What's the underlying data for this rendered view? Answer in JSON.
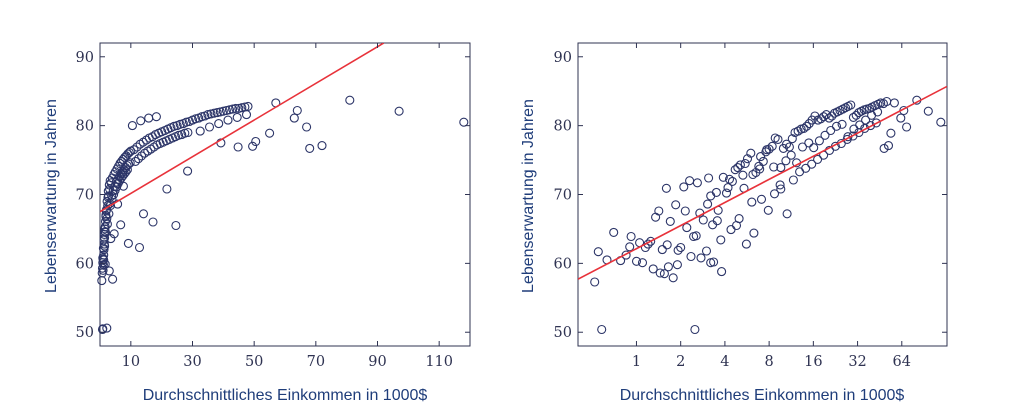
{
  "chart_data": [
    {
      "type": "scatter",
      "xscale": "linear",
      "xlabel": "Durchschnittliches Einkommen in 1000$",
      "ylabel": "Lebenserwartung in Jahren",
      "xlim": [
        0,
        120
      ],
      "ylim": [
        48,
        92
      ],
      "xticks": [
        10,
        30,
        50,
        70,
        90,
        110
      ],
      "xtick_labels": [
        "10",
        "30",
        "50",
        "70",
        "90",
        "110"
      ],
      "yticks": [
        50,
        60,
        70,
        80,
        90
      ],
      "ytick_labels": [
        "50",
        "60",
        "70",
        "80",
        "90"
      ],
      "grid": false,
      "trendline": {
        "x": [
          0,
          92
        ],
        "y": [
          67.5,
          92
        ]
      },
      "series": [
        {
          "x": [
            0.6,
            0.7,
            0.8,
            0.9,
            1.0,
            1.1,
            1.2,
            1.3,
            1.4,
            1.5,
            1.6,
            1.7,
            1.8,
            1.9,
            2.0,
            0.8,
            1.0,
            1.2,
            1.5,
            1.8,
            2.2,
            2.5,
            2.8,
            1.1,
            1.4,
            1.9,
            2.3,
            2.7,
            3.0,
            3.3,
            0.9,
            1.3,
            1.6,
            2.1,
            2.6,
            3.1,
            3.6,
            4.0,
            4.5,
            5.0,
            5.5,
            6.0,
            6.5,
            7.0,
            7.5,
            8.0,
            8.5,
            9.0,
            9.5,
            10.0,
            3.2,
            3.8,
            4.3,
            4.8,
            5.3,
            5.8,
            6.3,
            6.8,
            7.3,
            7.8,
            8.3,
            8.8,
            9.3,
            9.8,
            2.4,
            2.9,
            3.4,
            3.9,
            4.4,
            4.9,
            5.4,
            5.9,
            6.4,
            6.9,
            7.4,
            7.9,
            8.4,
            8.9,
            11,
            12,
            13,
            14,
            15,
            16,
            17,
            18,
            19,
            20,
            21,
            22,
            23,
            24,
            25,
            26,
            27,
            28,
            29,
            30,
            11.5,
            12.5,
            13.5,
            14.5,
            15.5,
            16.5,
            17.5,
            18.5,
            19.5,
            20.5,
            21.5,
            22.5,
            23.5,
            24.5,
            25.5,
            26.5,
            27.5,
            28.5,
            10.5,
            13.2,
            15.8,
            18.3,
            12.8,
            14.1,
            24.6,
            9.2,
            6.7,
            4.1,
            2.2,
            1.7,
            3.5,
            5.7,
            7.6,
            31,
            32,
            33,
            34,
            35,
            36,
            37,
            38,
            39,
            40,
            41,
            42,
            43,
            44,
            45,
            46,
            47,
            48,
            32.5,
            35.5,
            38.5,
            41.5,
            44.5,
            47.5,
            49.5,
            50.5,
            55,
            57,
            63,
            64,
            67,
            68,
            72,
            81,
            97,
            118,
            28.4,
            21.7,
            17.2,
            0.9,
            3.0,
            4.6,
            39.2,
            44.8
          ],
          "y": [
            57.5,
            58.6,
            59.3,
            60.1,
            60.6,
            59.8,
            61.2,
            62.0,
            62.8,
            63.7,
            64.6,
            65.3,
            66.1,
            67.0,
            67.6,
            50.4,
            59.0,
            60.5,
            62.5,
            64.5,
            66.5,
            68.4,
            69.8,
            62.2,
            64.2,
            66.8,
            69.0,
            70.5,
            71.4,
            72.0,
            60.8,
            63.4,
            65.0,
            67.8,
            69.6,
            70.8,
            71.7,
            72.4,
            72.9,
            73.3,
            73.7,
            74.1,
            74.5,
            74.8,
            75.1,
            75.4,
            75.6,
            75.9,
            76.1,
            76.3,
            68.7,
            69.8,
            70.6,
            71.2,
            71.8,
            72.2,
            72.6,
            73.0,
            73.3,
            73.6,
            73.9,
            74.2,
            74.4,
            74.6,
            65.7,
            67.2,
            68.4,
            69.3,
            70.0,
            70.6,
            71.1,
            71.6,
            72.0,
            72.4,
            72.7,
            73.0,
            73.3,
            73.6,
            76.5,
            76.9,
            77.3,
            77.6,
            77.9,
            78.2,
            78.4,
            78.7,
            78.9,
            79.1,
            79.3,
            79.5,
            79.7,
            79.9,
            80.0,
            80.2,
            80.3,
            80.5,
            80.6,
            80.8,
            74.8,
            75.2,
            75.6,
            76.0,
            76.3,
            76.6,
            76.9,
            77.2,
            77.4,
            77.6,
            77.8,
            78.0,
            78.2,
            78.4,
            78.6,
            78.7,
            78.9,
            79.0,
            80.0,
            80.7,
            81.1,
            81.3,
            62.3,
            67.2,
            65.5,
            62.9,
            65.6,
            57.7,
            50.6,
            59.9,
            63.6,
            68.6,
            71.2,
            81.0,
            81.1,
            81.3,
            81.4,
            81.6,
            81.7,
            81.8,
            81.9,
            82.0,
            82.1,
            82.2,
            82.3,
            82.4,
            82.5,
            82.5,
            82.6,
            82.7,
            82.8,
            79.2,
            79.8,
            80.3,
            80.8,
            81.2,
            81.6,
            77.0,
            77.7,
            78.9,
            83.3,
            81.1,
            82.2,
            79.8,
            76.7,
            77.1,
            83.7,
            82.1,
            80.5,
            73.4,
            70.8,
            66.0,
            50.5,
            58.9,
            64.3,
            77.5,
            76.9
          ]
        }
      ]
    },
    {
      "type": "scatter",
      "xscale": "log",
      "xlabel": "Durchschnittliches Einkommen in 1000$",
      "ylabel": "Lebenserwartung in Jahren",
      "xlim": [
        0.4,
        130
      ],
      "ylim": [
        48,
        92
      ],
      "xticks": [
        1,
        2,
        4,
        8,
        16,
        32,
        64
      ],
      "xtick_labels": [
        "1",
        "2",
        "4",
        "8",
        "16",
        "32",
        "64"
      ],
      "yticks": [
        50,
        60,
        70,
        80,
        90
      ],
      "ytick_labels": [
        "50",
        "60",
        "70",
        "80",
        "90"
      ],
      "grid": false,
      "trendline": {
        "x": [
          0.4,
          130
        ],
        "y": [
          57.7,
          85.7
        ]
      },
      "series": [
        {
          "x": [
            0.52,
            0.58,
            0.63,
            0.7,
            0.78,
            0.85,
            0.92,
            1.0,
            1.05,
            1.1,
            1.2,
            1.3,
            1.35,
            1.42,
            1.5,
            1.55,
            1.62,
            1.7,
            1.78,
            1.85,
            1.92,
            2.0,
            2.1,
            2.2,
            2.3,
            2.45,
            2.6,
            2.7,
            2.85,
            3.0,
            3.1,
            3.2,
            3.35,
            3.5,
            3.6,
            3.75,
            3.9,
            4.1,
            4.3,
            4.5,
            4.7,
            4.9,
            5.1,
            5.3,
            5.5,
            5.7,
            6.0,
            6.2,
            6.5,
            6.8,
            7.0,
            7.3,
            7.6,
            8.0,
            8.4,
            8.8,
            9.2,
            9.6,
            10.0,
            10.5,
            11.0,
            11.5,
            12.0,
            12.6,
            13.2,
            13.8,
            14.4,
            15.0,
            15.7,
            16.4,
            17.2,
            18.0,
            18.8,
            19.6,
            20.5,
            21.4,
            22.3,
            23.3,
            24.3,
            25.4,
            26.5,
            27.6,
            28.8,
            30.0,
            31.3,
            32.6,
            34.0,
            35.5,
            37.0,
            38.6,
            40.2,
            42.0,
            44.0,
            46.0,
            48.0,
            50.5,
            54.0,
            57.0,
            63.0,
            66.0,
            69.0,
            81.0,
            97.0,
            118.0,
            1.15,
            1.45,
            1.9,
            2.35,
            2.75,
            3.3,
            3.8,
            4.4,
            5.0,
            5.6,
            6.3,
            7.1,
            7.9,
            8.7,
            9.6,
            10.6,
            11.7,
            12.9,
            14.2,
            15.6,
            17.1,
            18.8,
            20.6,
            22.6,
            24.8,
            27.2,
            29.8,
            32.7,
            35.8,
            39.2,
            42.9,
            1.25,
            1.65,
            2.15,
            2.55,
            3.05,
            3.55,
            4.2,
            4.8,
            5.4,
            6.1,
            6.9,
            7.7,
            8.6,
            9.5,
            10.4,
            11.3,
            12.3,
            13.5,
            14.9,
            16.1,
            17.6,
            19.2,
            21.0,
            23.0,
            25.1,
            27.5,
            30.2,
            33.1,
            36.3,
            39.9,
            43.8,
            48.5,
            52.0,
            0.55,
            0.9,
            1.6,
            2.5,
            3.2
          ],
          "y": [
            57.3,
            50.4,
            60.5,
            64.5,
            60.4,
            61.2,
            63.9,
            60.3,
            63.0,
            60.1,
            62.8,
            59.2,
            66.7,
            67.6,
            62.0,
            58.5,
            62.7,
            66.1,
            57.9,
            68.5,
            61.9,
            62.3,
            71.1,
            65.2,
            72.0,
            63.9,
            71.7,
            67.3,
            66.3,
            61.8,
            72.4,
            69.8,
            60.2,
            70.3,
            67.7,
            63.4,
            72.5,
            70.2,
            72.2,
            71.9,
            73.6,
            73.9,
            74.3,
            72.8,
            74.5,
            75.2,
            76.0,
            72.9,
            73.2,
            74.1,
            75.5,
            74.8,
            76.2,
            76.6,
            77.0,
            78.2,
            78.0,
            73.9,
            76.7,
            77.3,
            76.9,
            78.1,
            79.0,
            79.2,
            79.5,
            79.6,
            79.9,
            80.3,
            80.8,
            81.4,
            80.8,
            81.0,
            81.3,
            81.6,
            81.1,
            81.4,
            81.8,
            82.0,
            82.2,
            82.4,
            82.6,
            82.8,
            83.0,
            81.2,
            81.5,
            81.9,
            82.1,
            82.3,
            82.4,
            82.5,
            82.7,
            82.9,
            83.1,
            83.3,
            83.2,
            83.5,
            78.9,
            83.3,
            81.1,
            82.2,
            79.8,
            83.7,
            82.1,
            80.5,
            62.3,
            58.6,
            59.8,
            61.0,
            60.8,
            65.6,
            58.8,
            64.9,
            66.5,
            62.8,
            64.4,
            69.3,
            67.7,
            70.1,
            70.8,
            67.2,
            72.1,
            73.3,
            73.8,
            74.4,
            75.1,
            75.7,
            76.4,
            77.0,
            77.4,
            78.0,
            78.5,
            79.0,
            79.6,
            80.0,
            80.4,
            63.2,
            59.5,
            67.6,
            64.0,
            68.6,
            66.2,
            71.0,
            65.5,
            70.9,
            68.9,
            73.7,
            76.5,
            74.0,
            71.4,
            74.9,
            75.7,
            74.6,
            76.9,
            77.5,
            76.8,
            77.8,
            78.6,
            79.3,
            79.9,
            80.2,
            78.4,
            79.5,
            80.1,
            80.8,
            81.5,
            82.0,
            76.7,
            77.1,
            61.7,
            62.4,
            70.9,
            50.4,
            60.1
          ]
        }
      ]
    }
  ]
}
